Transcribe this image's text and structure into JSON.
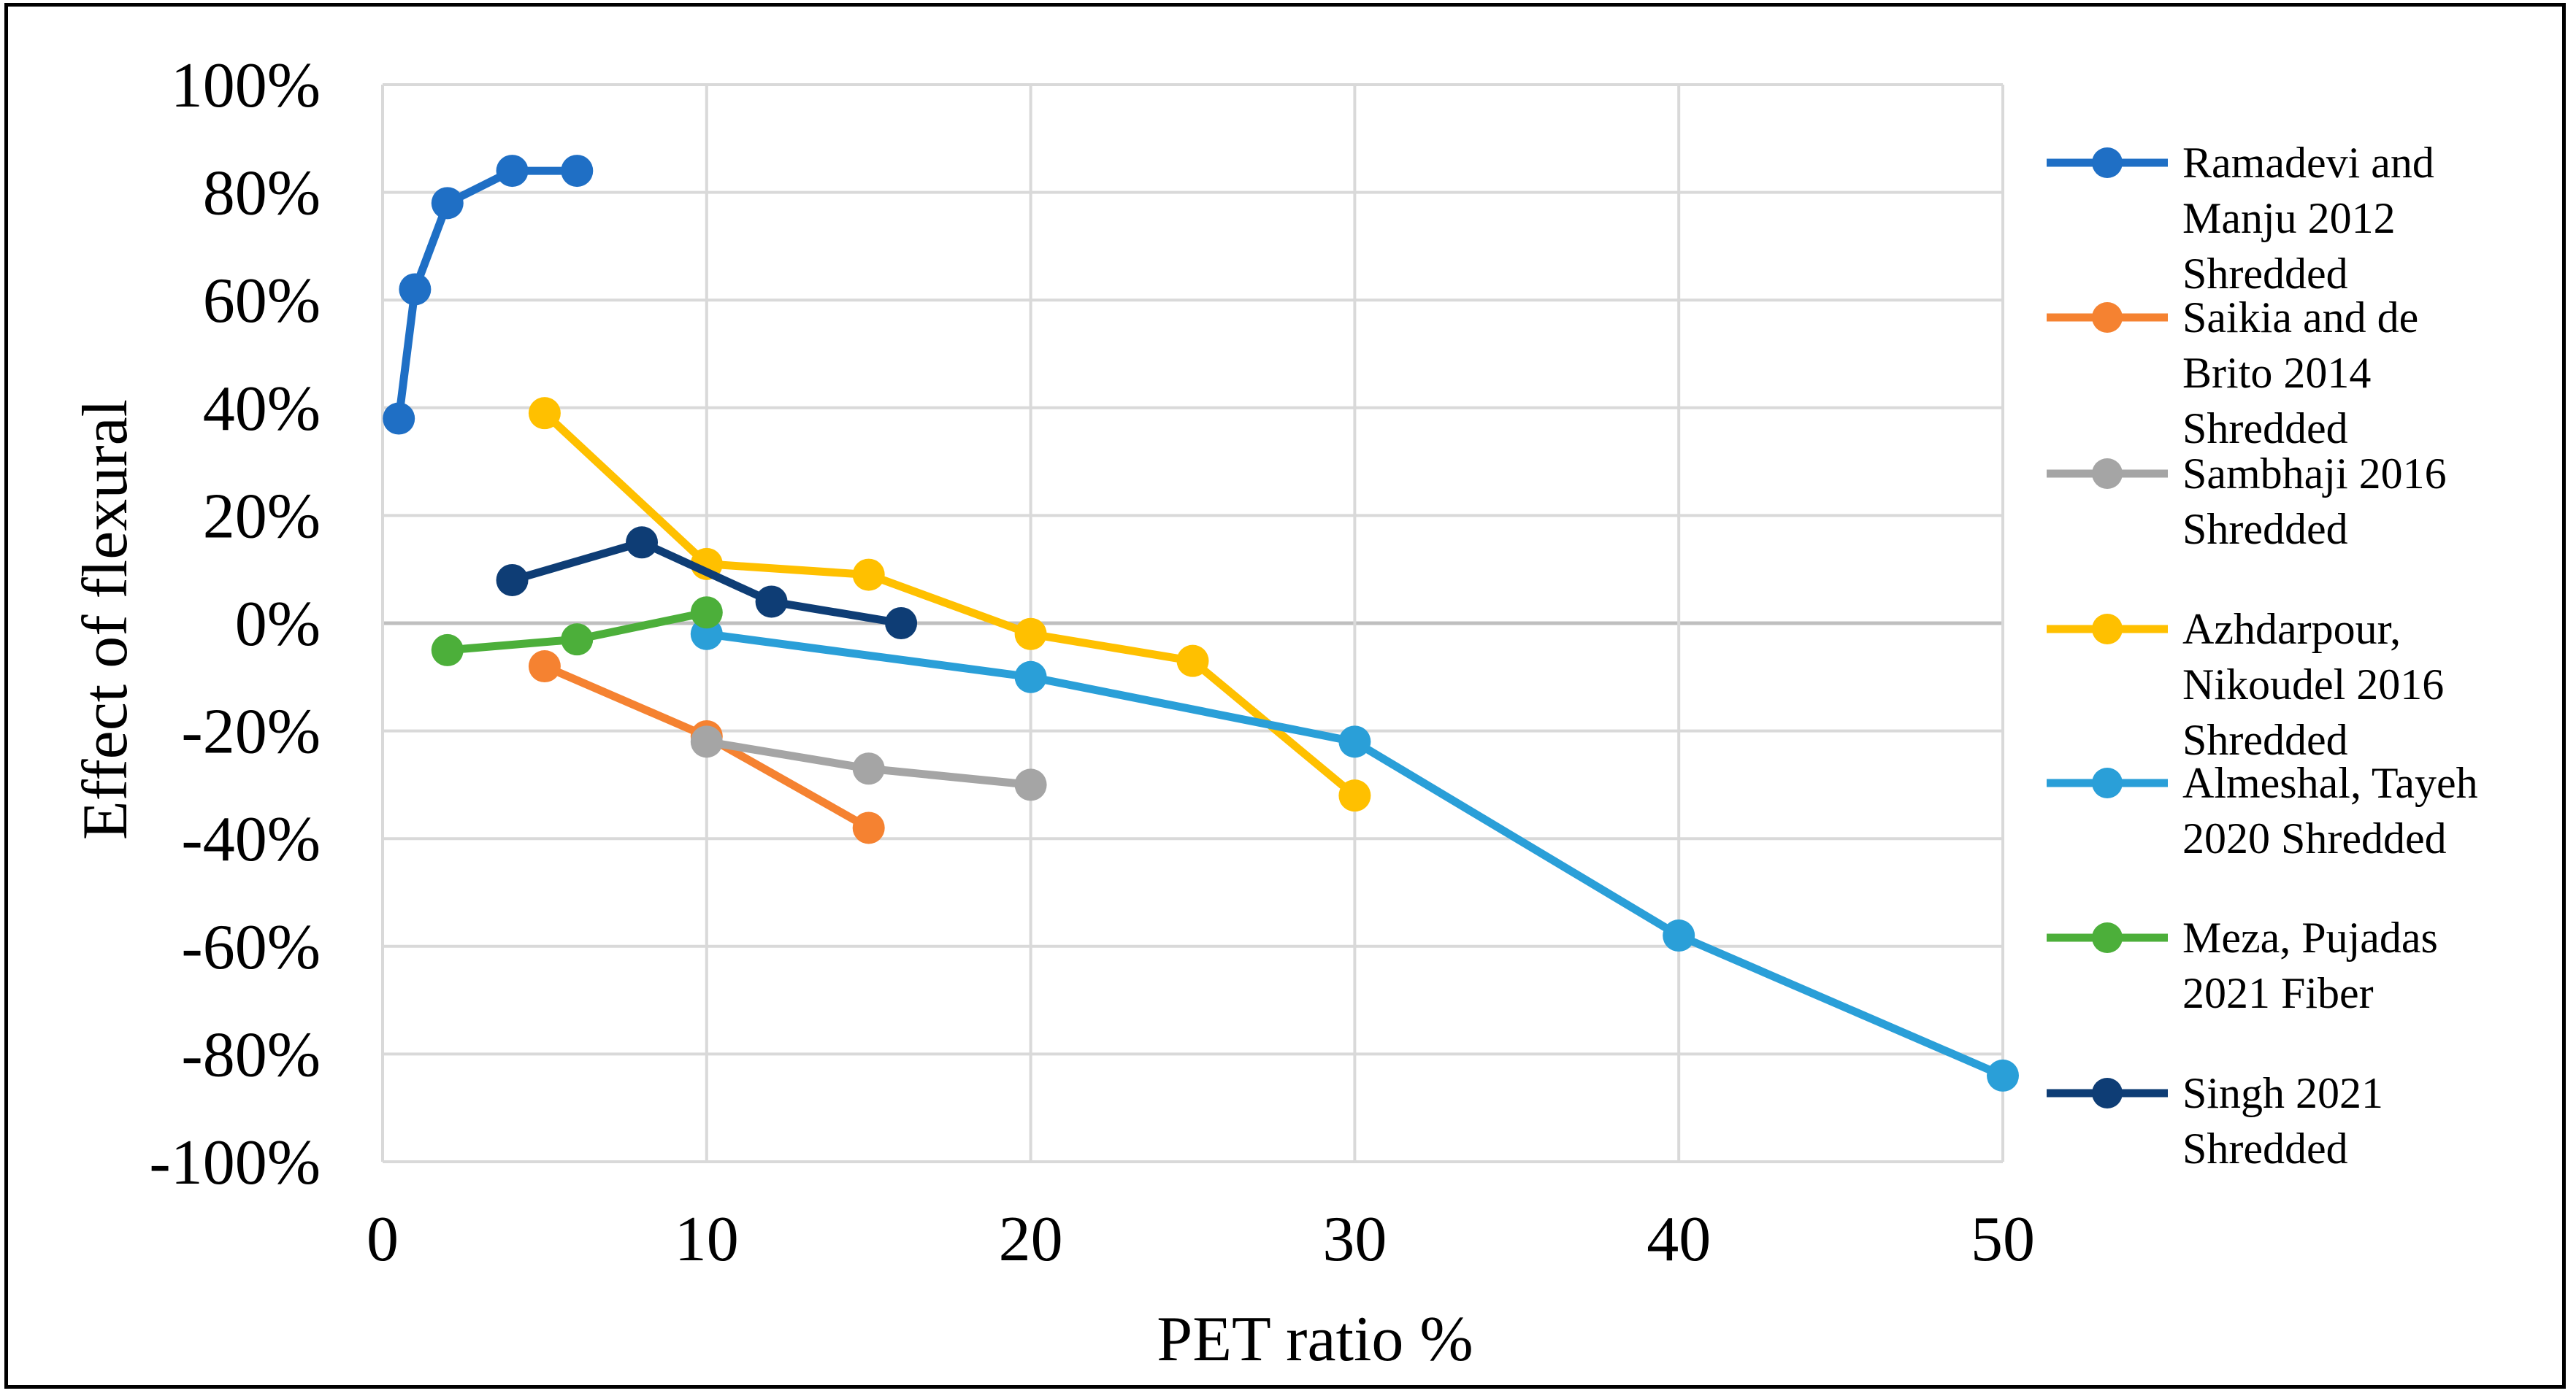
{
  "chart_data": {
    "type": "line",
    "title": "",
    "xlabel": "PET ratio %",
    "ylabel": "Effect of flexural",
    "xlim": [
      0,
      50
    ],
    "ylim": [
      -100,
      100
    ],
    "x_ticks": [
      0,
      10,
      20,
      30,
      40,
      50
    ],
    "x_tick_labels": [
      "0",
      "10",
      "20",
      "30",
      "40",
      "50"
    ],
    "y_ticks": [
      100,
      80,
      60,
      40,
      20,
      0,
      -20,
      -40,
      -60,
      -80,
      -100
    ],
    "y_tick_labels": [
      "100%",
      "80%",
      "60%",
      "40%",
      "20%",
      "0%",
      "-20%",
      "-40%",
      "-60%",
      "-80%",
      "-100%"
    ],
    "grid": true,
    "legend_position": "right",
    "series": [
      {
        "name": "Ramadevi and Manju 2012 Shredded",
        "legend_lines": [
          "Ramadevi and",
          "Manju 2012",
          "Shredded"
        ],
        "color": "#1f6fc5",
        "x": [
          0.5,
          1,
          2,
          4,
          6
        ],
        "y": [
          38,
          62,
          78,
          84,
          84
        ]
      },
      {
        "name": "Saikia and de Brito 2014 Shredded",
        "legend_lines": [
          "Saikia and de",
          "Brito 2014",
          "Shredded"
        ],
        "color": "#f58231",
        "x": [
          5,
          10,
          15
        ],
        "y": [
          -8,
          -21,
          -38
        ]
      },
      {
        "name": "Sambhaji 2016 Shredded",
        "legend_lines": [
          "Sambhaji 2016",
          "Shredded"
        ],
        "color": "#a5a5a5",
        "x": [
          10,
          15,
          20
        ],
        "y": [
          -22,
          -27,
          -30
        ]
      },
      {
        "name": "Azhdarpour, Nikoudel 2016 Shredded",
        "legend_lines": [
          "Azhdarpour,",
          "Nikoudel 2016",
          "Shredded"
        ],
        "color": "#ffc000",
        "x": [
          5,
          10,
          15,
          20,
          25,
          30
        ],
        "y": [
          39,
          11,
          9,
          -2,
          -7,
          -32
        ]
      },
      {
        "name": "Almeshal, Tayeh 2020 Shredded",
        "legend_lines": [
          "Almeshal, Tayeh",
          "2020 Shredded"
        ],
        "color": "#2a9fd8",
        "x": [
          10,
          20,
          30,
          40,
          50
        ],
        "y": [
          -2,
          -10,
          -22,
          -58,
          -84
        ]
      },
      {
        "name": "Meza, Pujadas 2021 Fiber",
        "legend_lines": [
          "Meza, Pujadas",
          "2021 Fiber"
        ],
        "color": "#4caf3a",
        "x": [
          2,
          6,
          10
        ],
        "y": [
          -5,
          -3,
          2
        ]
      },
      {
        "name": "Singh 2021 Shredded",
        "legend_lines": [
          "Singh 2021",
          "Shredded"
        ],
        "color": "#0e3d75",
        "x": [
          4,
          8,
          12,
          16
        ],
        "y": [
          8,
          15,
          4,
          0
        ]
      }
    ]
  }
}
